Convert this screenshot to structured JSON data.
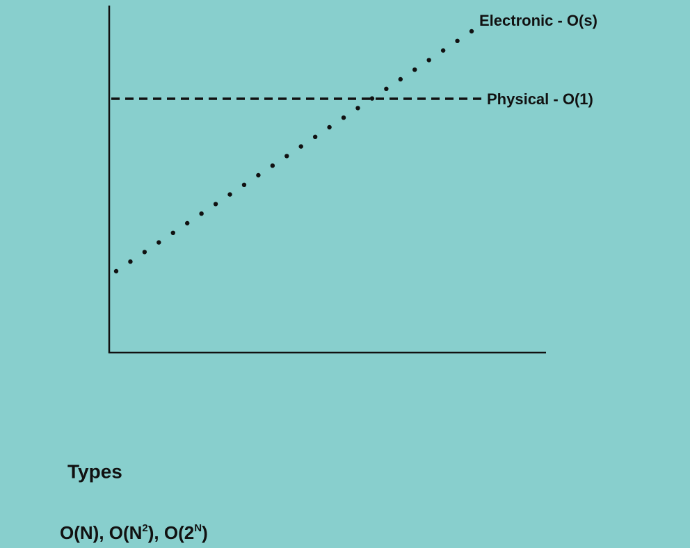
{
  "diagram": {
    "lines": [
      {
        "label": "Electronic - O(s)"
      },
      {
        "label": "Physical - O(1)"
      }
    ],
    "types": {
      "heading": "Types",
      "list": [
        {
          "text": "O(N), O(N"
        },
        {
          "sup": "2"
        },
        {
          "text": "), O(2"
        },
        {
          "sup": "N"
        },
        {
          "text": ")"
        }
      ]
    }
  }
}
